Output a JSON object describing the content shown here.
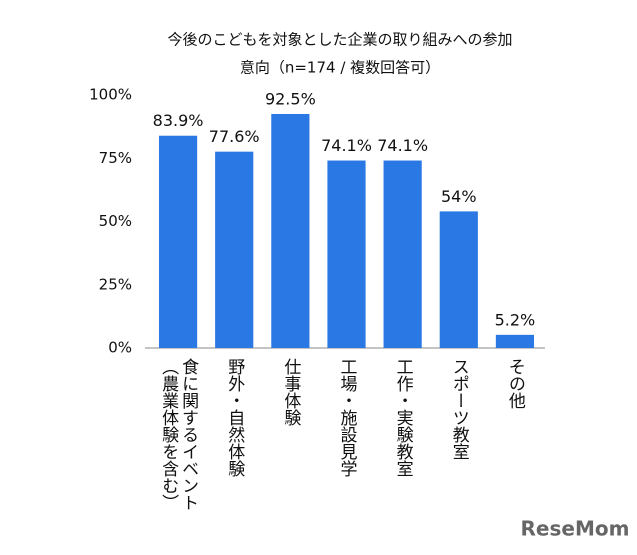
{
  "chart_data": {
    "type": "bar",
    "title": "今後のこどもを対象とした企業の取り組みへの参加",
    "subtitle": "意向（n=174 / 複数回答可）",
    "categories": [
      "食に関するイベント（農業体験を含む）",
      "野外・自然体験",
      "仕事体験",
      "工場・施設見学",
      "工作・実験教室",
      "スポーツ教室",
      "その他"
    ],
    "values": [
      83.9,
      77.6,
      92.5,
      74.1,
      74.1,
      54,
      5.2
    ],
    "value_labels": [
      "83.9%",
      "77.6%",
      "92.5%",
      "74.1%",
      "74.1%",
      "54%",
      "5.2%"
    ],
    "color": "#2a78e4",
    "ylim": [
      0,
      100
    ],
    "yticks": [
      {
        "value": 0,
        "label": "0%"
      },
      {
        "value": 25,
        "label": "25%"
      },
      {
        "value": 50,
        "label": "50%"
      },
      {
        "value": 75,
        "label": "75%"
      },
      {
        "value": 100,
        "label": "100%"
      }
    ],
    "grid": false,
    "watermark": "ReseMom"
  }
}
